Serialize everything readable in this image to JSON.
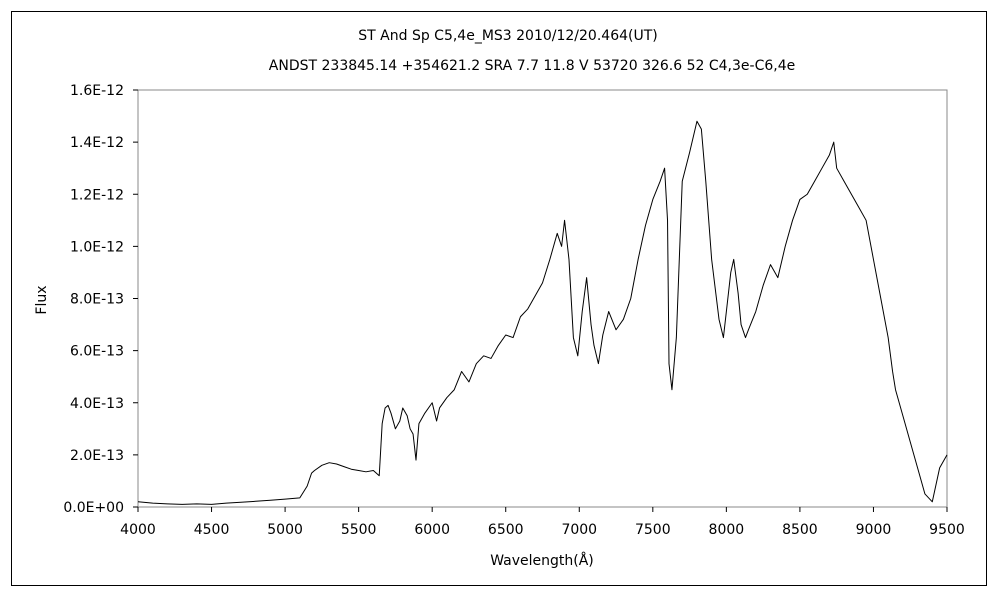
{
  "chart_data": {
    "type": "line",
    "title": "ST And    Sp C5,4e_MS3    2010/12/20.464(UT)",
    "subtitle": "ANDST 233845.14 +354621.2 SRA 7.7 11.8 V 53720 326.6 52 C4,3e-C6,4e",
    "xlabel": "Wavelength(Å)",
    "ylabel": "Flux",
    "xlim": [
      4000,
      9500
    ],
    "ylim": [
      0,
      1.6e-12
    ],
    "x_ticks": [
      4000,
      4500,
      5000,
      5500,
      6000,
      6500,
      7000,
      7500,
      8000,
      8500,
      9000,
      9500
    ],
    "x_tick_labels": [
      "4000",
      "4500",
      "5000",
      "5500",
      "6000",
      "6500",
      "7000",
      "7500",
      "8000",
      "8500",
      "9000",
      "9500"
    ],
    "y_ticks": [
      0,
      2e-13,
      4e-13,
      6e-13,
      8e-13,
      1e-12,
      1.2e-12,
      1.4e-12,
      1.6e-12
    ],
    "y_tick_labels": [
      "0.0E+00",
      "2.0E-13",
      "4.0E-13",
      "6.0E-13",
      "8.0E-13",
      "1.0E-12",
      "1.2E-12",
      "1.4E-12",
      "1.6E-12"
    ],
    "grid": false,
    "legend": "none",
    "line_color": "#000000",
    "series": [
      {
        "x": [
          4000,
          4100,
          4200,
          4300,
          4400,
          4500,
          4600,
          4700,
          4800,
          4900,
          5000,
          5100,
          5150,
          5180,
          5200,
          5250,
          5300,
          5350,
          5400,
          5450,
          5500,
          5550,
          5600,
          5640,
          5660,
          5680,
          5700,
          5720,
          5750,
          5780,
          5800,
          5830,
          5850,
          5870,
          5890,
          5910,
          5950,
          6000,
          6030,
          6050,
          6100,
          6150,
          6200,
          6250,
          6300,
          6350,
          6400,
          6450,
          6500,
          6550,
          6600,
          6650,
          6700,
          6750,
          6800,
          6850,
          6880,
          6900,
          6930,
          6960,
          6990,
          7020,
          7050,
          7080,
          7100,
          7130,
          7160,
          7200,
          7250,
          7300,
          7350,
          7400,
          7450,
          7500,
          7550,
          7580,
          7600,
          7610,
          7630,
          7660,
          7700,
          7750,
          7800,
          7830,
          7860,
          7900,
          7950,
          7980,
          8000,
          8030,
          8050,
          8080,
          8100,
          8130,
          8150,
          8200,
          8250,
          8300,
          8350,
          8400,
          8450,
          8500,
          8550,
          8600,
          8650,
          8700,
          8730,
          8750,
          8800,
          8850,
          8900,
          8950,
          9000,
          9050,
          9100,
          9130,
          9150,
          9200,
          9250,
          9300,
          9350,
          9400,
          9450,
          9500
        ],
        "y": [
          2e-14,
          1.5e-14,
          1.2e-14,
          1e-14,
          1.2e-14,
          1e-14,
          1.5e-14,
          1.8e-14,
          2.2e-14,
          2.6e-14,
          3e-14,
          3.5e-14,
          8e-14,
          1.3e-13,
          1.4e-13,
          1.6e-13,
          1.7e-13,
          1.65e-13,
          1.55e-13,
          1.45e-13,
          1.4e-13,
          1.35e-13,
          1.4e-13,
          1.2e-13,
          3.2e-13,
          3.8e-13,
          3.9e-13,
          3.6e-13,
          3e-13,
          3.3e-13,
          3.8e-13,
          3.5e-13,
          3e-13,
          2.8e-13,
          1.8e-13,
          3.2e-13,
          3.6e-13,
          4e-13,
          3.3e-13,
          3.8e-13,
          4.2e-13,
          4.5e-13,
          5.2e-13,
          4.8e-13,
          5.5e-13,
          5.8e-13,
          5.7e-13,
          6.2e-13,
          6.6e-13,
          6.5e-13,
          7.3e-13,
          7.6e-13,
          8.1e-13,
          8.6e-13,
          9.5e-13,
          1.05e-12,
          1e-12,
          1.1e-12,
          9.5e-13,
          6.5e-13,
          5.8e-13,
          7.5e-13,
          8.8e-13,
          7e-13,
          6.2e-13,
          5.5e-13,
          6.6e-13,
          7.5e-13,
          6.8e-13,
          7.2e-13,
          8e-13,
          9.5e-13,
          1.08e-12,
          1.18e-12,
          1.25e-12,
          1.3e-12,
          1.1e-12,
          5.5e-13,
          4.5e-13,
          6.5e-13,
          1.25e-12,
          1.36e-12,
          1.48e-12,
          1.45e-12,
          1.25e-12,
          9.5e-13,
          7.2e-13,
          6.5e-13,
          7.5e-13,
          9e-13,
          9.5e-13,
          8.2e-13,
          7e-13,
          6.5e-13,
          6.8e-13,
          7.5e-13,
          8.5e-13,
          9.3e-13,
          8.8e-13,
          1e-12,
          1.1e-12,
          1.18e-12,
          1.2e-12,
          1.25e-12,
          1.3e-12,
          1.35e-12,
          1.4e-12,
          1.3e-12,
          1.25e-12,
          1.2e-12,
          1.15e-12,
          1.1e-12,
          9.5e-13,
          8e-13,
          6.5e-13,
          5.2e-13,
          4.5e-13,
          3.5e-13,
          2.5e-13,
          1.5e-13,
          5e-14,
          2e-14,
          1.5e-13,
          2e-13
        ]
      }
    ]
  }
}
